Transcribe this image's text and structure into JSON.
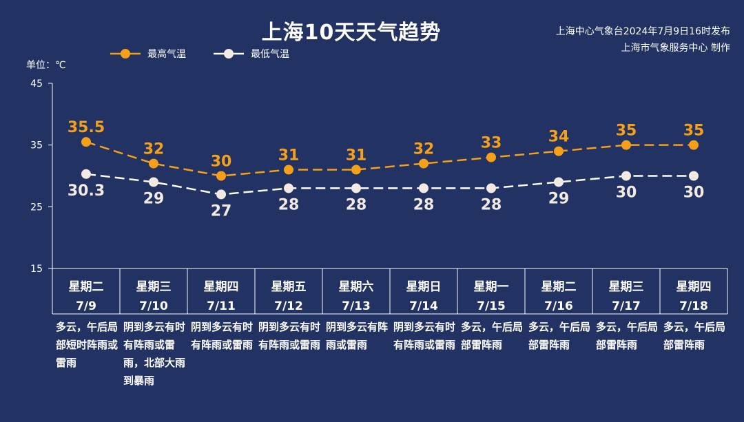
{
  "header": {
    "title": "上海10天天气趋势",
    "publisher_line1": "上海中心气象台2024年7月9日16时发布",
    "publisher_line2": "上海市气象服务中心 制作",
    "unit": "单位：℃"
  },
  "colors": {
    "background": "#213263",
    "high_series": "#f5a01a",
    "low_series": "#ffffff"
  },
  "chart_data": {
    "type": "line",
    "title": "上海10天天气趋势",
    "ylabel": "单位：℃",
    "ylim": [
      15,
      45
    ],
    "yticks": [
      "15",
      "25",
      "35",
      "45"
    ],
    "legend_position": "top-left",
    "grid": false,
    "categories": [
      "星期二 7/9",
      "星期三 7/10",
      "星期四 7/11",
      "星期五 7/12",
      "星期六 7/13",
      "星期日 7/14",
      "星期一 7/15",
      "星期二 7/16",
      "星期三 7/17",
      "星期四 7/18"
    ],
    "series": [
      {
        "name": "最高气温",
        "values": [
          35.5,
          32,
          30,
          31,
          31,
          32,
          33,
          34,
          35,
          35
        ],
        "labels": [
          "35.5",
          "32",
          "30",
          "31",
          "31",
          "32",
          "33",
          "34",
          "35",
          "35"
        ]
      },
      {
        "name": "最低气温",
        "values": [
          30.3,
          29,
          27,
          28,
          28,
          28,
          28,
          29,
          30,
          30
        ],
        "labels": [
          "30.3",
          "29",
          "27",
          "28",
          "28",
          "28",
          "28",
          "29",
          "30",
          "30"
        ]
      }
    ]
  },
  "days": [
    {
      "weekday": "星期二",
      "date": "7/9",
      "weather": "多云，午后局部短时阵雨或雷雨"
    },
    {
      "weekday": "星期三",
      "date": "7/10",
      "weather": "阴到多云有时有阵雨或雷雨，北部大雨到暴雨"
    },
    {
      "weekday": "星期四",
      "date": "7/11",
      "weather": "阴到多云有时有阵雨或雷雨"
    },
    {
      "weekday": "星期五",
      "date": "7/12",
      "weather": "阴到多云有时有阵雨或雷雨"
    },
    {
      "weekday": "星期六",
      "date": "7/13",
      "weather": "阴到多云有阵雨或雷雨"
    },
    {
      "weekday": "星期日",
      "date": "7/14",
      "weather": "阴到多云有时有阵雨或雷雨"
    },
    {
      "weekday": "星期一",
      "date": "7/15",
      "weather": "多云，午后局部雷阵雨"
    },
    {
      "weekday": "星期二",
      "date": "7/16",
      "weather": "多云，午后局部雷阵雨"
    },
    {
      "weekday": "星期三",
      "date": "7/17",
      "weather": "多云，午后局部雷阵雨"
    },
    {
      "weekday": "星期四",
      "date": "7/18",
      "weather": "多云，午后局部雷阵雨"
    }
  ]
}
